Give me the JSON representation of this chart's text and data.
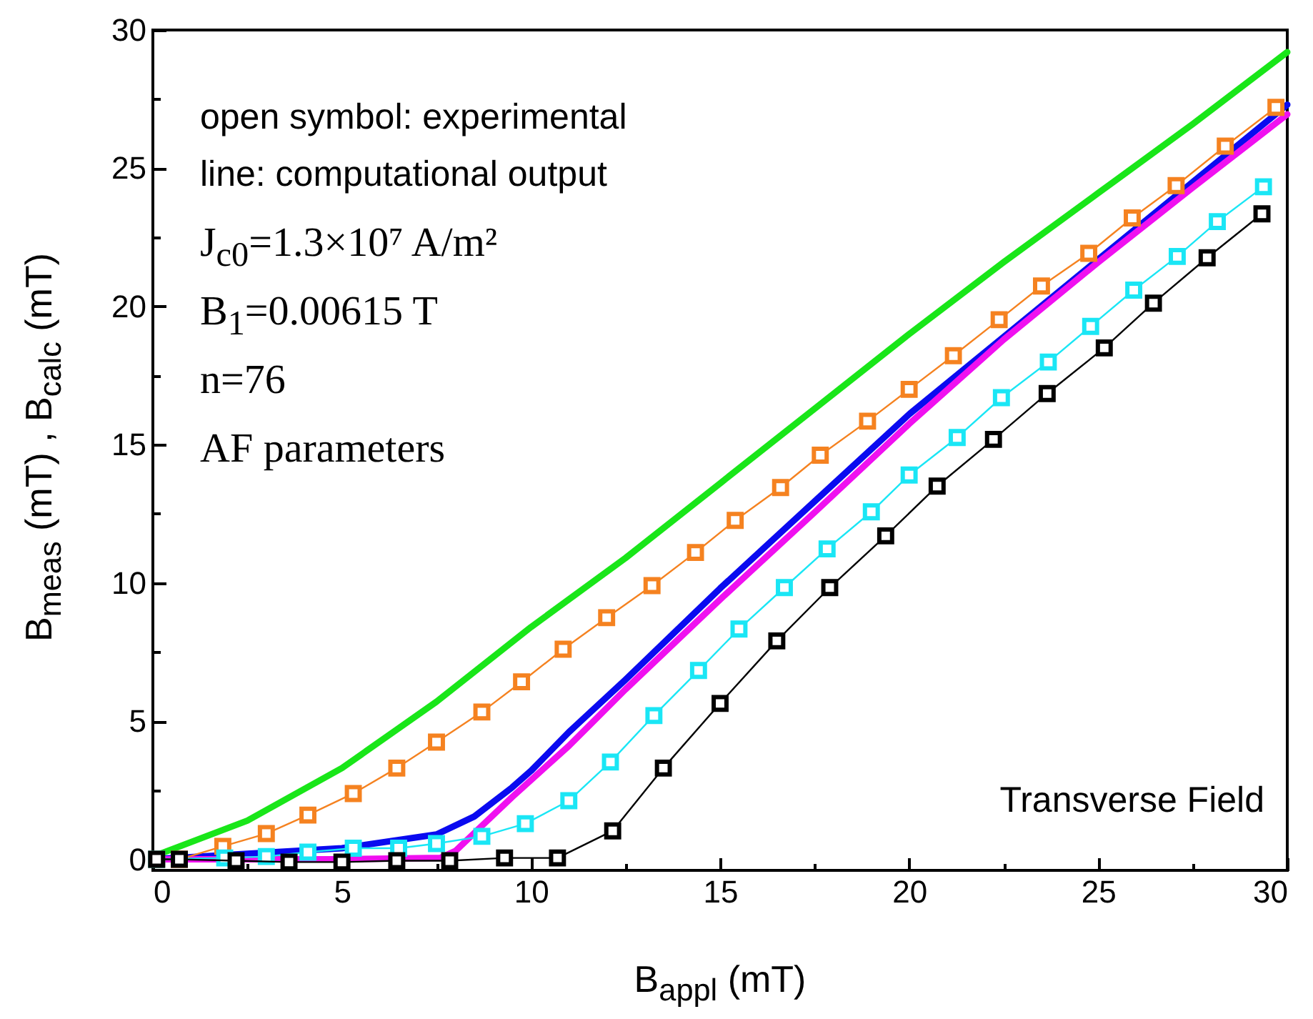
{
  "chart_data": {
    "type": "line",
    "xlabel": "B$_{appl}$ (mT)",
    "ylabel": "B$_{meas}$ (mT) , B$_{calc}$ (mT)",
    "annotations": [
      "open symbol: experimental",
      "line: computational output",
      "J$_{c0}$=1.3×10⁷ A/m²",
      "B$_{1}$=0.00615 T",
      "n=76",
      "AF parameters",
      "Transverse Field"
    ],
    "xlim": [
      0,
      30
    ],
    "ylim": [
      -0.4,
      30
    ],
    "xticks": [
      0,
      {
        "value": 2.5,
        "label": null
      },
      5,
      {
        "value": 7.5,
        "label": null
      },
      10,
      {
        "value": 12.5,
        "label": null
      },
      15,
      {
        "value": 17.5,
        "label": null
      },
      20,
      {
        "value": 22.5,
        "label": null
      },
      25,
      {
        "value": 27.5,
        "label": null
      },
      30
    ],
    "yticks": [
      0,
      {
        "value": 2.5,
        "label": null
      },
      5,
      {
        "value": 7.5,
        "label": null
      },
      10,
      {
        "value": 12.5,
        "label": null
      },
      15,
      {
        "value": 17.5,
        "label": null
      },
      20,
      {
        "value": 22.5,
        "label": null
      },
      25,
      {
        "value": 27.5,
        "label": null
      },
      30
    ],
    "grid": false,
    "series": [
      {
        "color": "#19e619",
        "x": [
          0,
          2.5,
          5,
          7.5,
          10,
          12.5,
          15,
          17.5,
          20,
          22.5,
          25,
          27.5,
          30
        ],
        "values": [
          0.1,
          1.4,
          3.3,
          5.7,
          8.4,
          10.9,
          13.6,
          16.3,
          19.0,
          21.6,
          24.1,
          26.6,
          29.2
        ]
      },
      {
        "color": "#0a0af0",
        "x": [
          0,
          2.5,
          5,
          7.5,
          8.5,
          9.5,
          10,
          11,
          12.5,
          15,
          17.5,
          20,
          22.5,
          25,
          27.5,
          30
        ],
        "values": [
          0,
          0.2,
          0.4,
          0.9,
          1.55,
          2.6,
          3.2,
          4.6,
          6.5,
          9.8,
          12.95,
          16.1,
          18.9,
          21.7,
          24.5,
          27.3
        ]
      },
      {
        "color": "#f010f0",
        "x": [
          0,
          5,
          7.6,
          8,
          8.5,
          9.5,
          11,
          12.5,
          15,
          17.5,
          20,
          22.5,
          25,
          27.5,
          30
        ],
        "values": [
          0,
          0,
          0.05,
          0.3,
          0.95,
          2.25,
          4.1,
          6.15,
          9.4,
          12.55,
          15.75,
          18.8,
          21.6,
          24.3,
          26.95
        ]
      },
      {
        "color": "#f58220",
        "marker": "square",
        "x": [
          0.1,
          0.7,
          1.85,
          3.0,
          4.1,
          5.3,
          6.45,
          7.5,
          8.7,
          9.75,
          10.85,
          12.0,
          13.2,
          14.35,
          15.4,
          16.6,
          17.65,
          18.9,
          20.0,
          21.17,
          22.38,
          23.5,
          24.75,
          25.9,
          27.06,
          28.36,
          29.7
        ],
        "values": [
          0,
          0,
          0.47,
          0.93,
          1.6,
          2.38,
          3.3,
          4.24,
          5.33,
          6.42,
          7.6,
          8.74,
          9.9,
          11.1,
          12.26,
          13.45,
          14.62,
          15.85,
          17.0,
          18.22,
          19.52,
          20.74,
          21.92,
          23.2,
          24.37,
          25.8,
          27.2
        ]
      },
      {
        "color": "#1ae6f5",
        "marker": "square",
        "x": [
          0.1,
          1.9,
          3.0,
          4.1,
          5.3,
          6.5,
          7.5,
          8.7,
          9.85,
          11.0,
          12.1,
          13.25,
          14.43,
          15.5,
          16.7,
          17.83,
          19.0,
          20.0,
          21.27,
          22.44,
          23.68,
          24.8,
          25.94,
          27.09,
          28.15,
          29.37
        ],
        "values": [
          0,
          0.05,
          0.1,
          0.26,
          0.4,
          0.4,
          0.57,
          0.83,
          1.29,
          2.12,
          3.52,
          5.2,
          6.83,
          8.33,
          9.83,
          11.23,
          12.57,
          13.9,
          15.26,
          16.7,
          17.99,
          19.28,
          20.59,
          21.81,
          23.07,
          24.33
        ]
      },
      {
        "color": "#000000",
        "marker": "square",
        "x": [
          0.1,
          0.7,
          2.2,
          3.6,
          5.0,
          6.45,
          7.85,
          9.3,
          10.7,
          12.16,
          13.5,
          15.0,
          16.5,
          17.9,
          19.38,
          20.74,
          22.23,
          23.65,
          25.16,
          26.46,
          27.88,
          29.33
        ],
        "values": [
          0,
          0,
          -0.05,
          -0.1,
          -0.1,
          -0.05,
          -0.05,
          0.05,
          0.05,
          1.03,
          3.3,
          5.64,
          7.9,
          9.83,
          11.7,
          13.5,
          15.19,
          16.85,
          18.5,
          20.12,
          21.76,
          23.35
        ]
      }
    ]
  }
}
